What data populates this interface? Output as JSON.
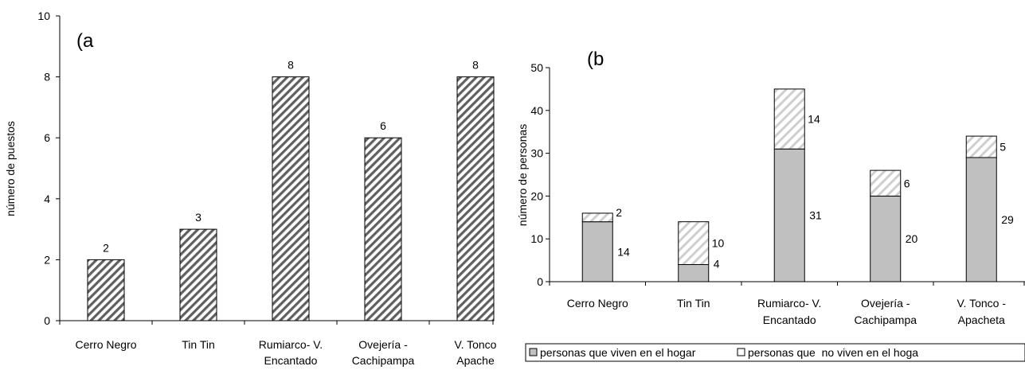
{
  "chart_data": [
    {
      "type": "bar",
      "panel_label": "(a",
      "ylabel": "número de puestos",
      "xlabel": "",
      "ylim": [
        0,
        10
      ],
      "yticks": [
        "0",
        "2",
        "4",
        "6",
        "8",
        "10"
      ],
      "categories": [
        [
          "Cerro Negro"
        ],
        [
          "Tin Tin"
        ],
        [
          "Rumiarco- V.",
          "Encantado"
        ],
        [
          "Ovejería -",
          "Cachipampa"
        ],
        [
          "V. Tonco",
          "Apache"
        ]
      ],
      "values": [
        2,
        3,
        8,
        6,
        8
      ],
      "value_labels": [
        "2",
        "3",
        "8",
        "6",
        "8"
      ],
      "pattern": "diagonal-hatch",
      "colors": {
        "bar_fill": "#ffffff",
        "hatch": "#555555",
        "border": "#000000"
      }
    },
    {
      "type": "bar",
      "stacked": true,
      "panel_label": "(b",
      "ylabel": "número de personas",
      "xlabel": "",
      "ylim": [
        0,
        50
      ],
      "yticks": [
        "0",
        "10",
        "20",
        "30",
        "40",
        "50"
      ],
      "categories": [
        [
          "Cerro Negro"
        ],
        [
          "Tin Tin"
        ],
        [
          "Rumiarco- V.",
          "Encantado"
        ],
        [
          "Ovejería -",
          "Cachipampa"
        ],
        [
          "V. Tonco -",
          "Apacheta"
        ]
      ],
      "series": [
        {
          "name": "personas que viven en el hogar",
          "values": [
            14,
            4,
            31,
            20,
            29
          ],
          "labels": [
            "14",
            "4",
            "31",
            "20",
            "29"
          ],
          "color": "#c0c0c0",
          "pattern": "solid"
        },
        {
          "name": "personas que  no viven en el hoga",
          "values": [
            2,
            10,
            14,
            6,
            5
          ],
          "labels": [
            "2",
            "10",
            "14",
            "6",
            "5"
          ],
          "color": "#ffffff",
          "pattern": "light-diagonal-hatch",
          "hatch_color": "#c8c8c8"
        }
      ],
      "legend_position": "bottom"
    }
  ]
}
